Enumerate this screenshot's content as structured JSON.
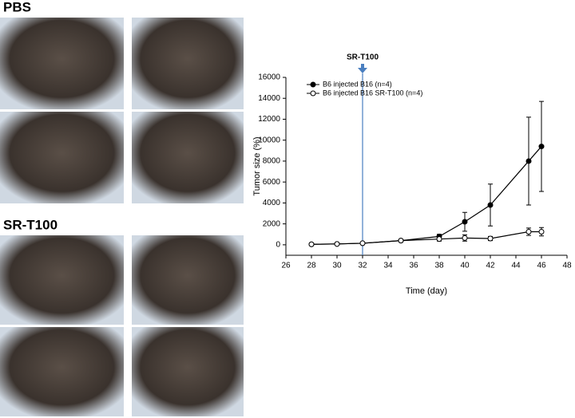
{
  "photo_groups": [
    {
      "label": "PBS"
    },
    {
      "label": "SR-T100"
    }
  ],
  "chart_data": {
    "type": "line",
    "x_label": "Time (day)",
    "y_label": "Tumor size (%)",
    "xlim": [
      26,
      48
    ],
    "xticks": [
      26,
      28,
      30,
      32,
      34,
      36,
      38,
      40,
      42,
      44,
      46,
      48
    ],
    "ylim": [
      -1000,
      16000
    ],
    "yticks": [
      0,
      2000,
      4000,
      6000,
      8000,
      10000,
      12000,
      14000,
      16000
    ],
    "legend": "upper left",
    "annotation": {
      "text": "SR-T100",
      "x": 32,
      "color": "#4a7fc0"
    },
    "series": [
      {
        "name": "B6 injected B16 (n=4)",
        "color": "#000000",
        "marker": "filled",
        "x": [
          28,
          30,
          32,
          35,
          38,
          40,
          42,
          45,
          46
        ],
        "values": [
          50,
          80,
          150,
          400,
          800,
          2200,
          3800,
          8000,
          9400
        ],
        "errors": [
          20,
          30,
          50,
          100,
          200,
          900,
          2000,
          4200,
          4300
        ]
      },
      {
        "name": "B6 injected B16 SR-T100 (n=4)",
        "color": "#000000",
        "marker": "open",
        "x": [
          28,
          30,
          32,
          35,
          38,
          40,
          42,
          45,
          46
        ],
        "values": [
          50,
          80,
          150,
          400,
          550,
          650,
          600,
          1250,
          1250
        ],
        "errors": [
          20,
          30,
          50,
          100,
          200,
          300,
          200,
          350,
          400
        ]
      }
    ]
  }
}
